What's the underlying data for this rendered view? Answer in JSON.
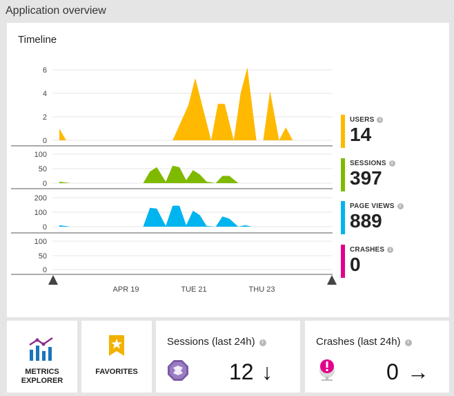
{
  "header": {
    "title": "Application overview"
  },
  "timeline": {
    "title": "Timeline",
    "x_labels": [
      "APR 19",
      "TUE 21",
      "THU 23"
    ]
  },
  "chart_data": [
    {
      "type": "area",
      "name": "Users",
      "color": "#ffb900",
      "y_ticks": [
        "6",
        "4",
        "2",
        "0"
      ],
      "ylim": [
        0,
        6
      ],
      "x": [
        0,
        0.3,
        1,
        1.7,
        2,
        2.7,
        3,
        3.7,
        4,
        4.7,
        5,
        5.7,
        6,
        6.7,
        7,
        7.3,
        7.7,
        8,
        8.3,
        8.7,
        9,
        9.3,
        9.7,
        10,
        10.3,
        10.7,
        11,
        11.3,
        11.7,
        12
      ],
      "values": [
        1,
        0,
        0,
        0,
        0,
        0,
        0,
        0,
        0,
        0,
        0,
        3,
        5.3,
        0,
        3.1,
        3.1,
        0,
        4,
        6.2,
        0,
        0,
        4.2,
        0,
        1.1,
        0,
        0,
        0,
        0,
        0,
        0
      ]
    },
    {
      "type": "area",
      "name": "Sessions",
      "color": "#7fba00",
      "y_ticks": [
        "100",
        "50",
        "0"
      ],
      "ylim": [
        0,
        100
      ],
      "x": [
        0,
        0.5,
        3.7,
        4,
        4.3,
        4.7,
        5,
        5.3,
        5.6,
        5.9,
        6.2,
        6.5,
        6.9,
        7.2,
        7.5,
        7.9,
        8.2,
        8.5,
        8.9,
        9.2,
        9.5,
        9.8,
        10.1,
        10.4,
        10.7,
        11
      ],
      "values": [
        5,
        0,
        0,
        40,
        55,
        5,
        60,
        55,
        10,
        45,
        30,
        5,
        0,
        25,
        25,
        0,
        0,
        0,
        0,
        0,
        0,
        0,
        0,
        0,
        0,
        0
      ]
    },
    {
      "type": "area",
      "name": "Page Views",
      "color": "#00b4f0",
      "y_ticks": [
        "200",
        "100",
        "0"
      ],
      "ylim": [
        0,
        200
      ],
      "x": [
        0,
        0.5,
        3.7,
        4,
        4.3,
        4.7,
        5,
        5.3,
        5.6,
        5.9,
        6.2,
        6.5,
        6.9,
        7.2,
        7.5,
        7.9,
        8.2,
        8.5
      ],
      "values": [
        10,
        0,
        0,
        130,
        125,
        5,
        145,
        145,
        10,
        110,
        80,
        5,
        0,
        70,
        55,
        0,
        10,
        0
      ]
    },
    {
      "type": "area",
      "name": "Crashes",
      "color": "#e3008c",
      "y_ticks": [
        "100",
        "50",
        "0"
      ],
      "ylim": [
        0,
        100
      ],
      "x": [],
      "values": []
    }
  ],
  "metrics": [
    {
      "label": "USERS",
      "value": "14",
      "color": "#ffb900"
    },
    {
      "label": "SESSIONS",
      "value": "397",
      "color": "#7fba00"
    },
    {
      "label": "PAGE VIEWS",
      "value": "889",
      "color": "#00b4f0"
    },
    {
      "label": "CRASHES",
      "value": "0",
      "color": "#e3008c"
    }
  ],
  "tiles": {
    "metrics_explorer": {
      "line1": "METRICS",
      "line2": "EXPLORER",
      "icon": "bar-line-chart-icon"
    },
    "favorites": {
      "label": "FAVORITES",
      "icon": "star-bookmark-icon"
    },
    "sessions": {
      "title": "Sessions (last 24h)",
      "value": "12",
      "trend": "↓",
      "icon": "sessions-icon"
    },
    "crashes": {
      "title": "Crashes (last 24h)",
      "value": "0",
      "trend": "→",
      "icon": "crash-icon"
    }
  }
}
